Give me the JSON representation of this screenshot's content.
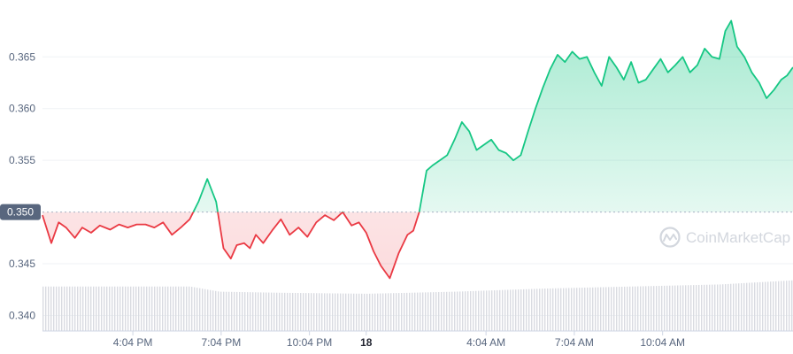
{
  "chart_data": {
    "type": "line",
    "yticks": [
      0.34,
      0.345,
      0.35,
      0.355,
      0.36,
      0.365
    ],
    "ytick_labels": [
      "0.340",
      "0.345",
      "0.350",
      "0.355",
      "0.360",
      "0.365"
    ],
    "ylim": [
      0.3385,
      0.3705
    ],
    "xticks": [
      "4:04 PM",
      "7:04 PM",
      "10:04 PM",
      "18",
      "4:04 AM",
      "7:04 AM",
      "10:04 AM"
    ],
    "xtick_hours": [
      16.07,
      19.07,
      22.07,
      24.0,
      28.07,
      31.07,
      34.07
    ],
    "xlim": [
      13.0,
      38.5
    ],
    "reference": {
      "value": 0.35,
      "label": "0.350"
    },
    "colors": {
      "up": "#16c784",
      "down": "#ea3943",
      "volume": "#d9dbe1",
      "reference": "#a6b0c3"
    },
    "grid": true,
    "watermark": "CoinMarketCap",
    "series": [
      {
        "x": [
          13.0,
          13.3,
          13.55,
          13.8,
          14.1,
          14.35,
          14.65,
          14.95,
          15.3,
          15.6,
          15.9,
          16.2,
          16.5,
          16.8,
          17.1,
          17.4,
          17.7,
          18.0,
          18.3,
          18.6,
          18.9,
          19.15,
          19.4,
          19.6,
          19.85,
          20.05,
          20.25,
          20.5,
          20.8,
          21.1,
          21.4,
          21.7,
          22.0,
          22.3,
          22.6,
          22.9,
          23.2,
          23.5,
          23.75,
          24.0,
          24.25,
          24.5,
          24.8,
          25.1,
          25.4,
          25.6,
          25.8,
          26.05,
          26.25,
          26.5,
          26.75,
          27.0,
          27.25,
          27.5,
          27.75,
          28.0,
          28.25,
          28.5,
          28.75,
          29.0,
          29.25,
          29.5,
          29.75,
          30.0,
          30.25,
          30.5,
          30.75,
          31.0,
          31.25,
          31.5,
          31.75,
          32.0,
          32.25,
          32.5,
          32.75,
          33.0,
          33.25,
          33.5,
          33.75,
          34.0,
          34.25,
          34.5,
          34.75,
          35.0,
          35.25,
          35.5,
          35.75,
          36.0,
          36.2,
          36.4,
          36.6,
          36.85,
          37.1,
          37.35,
          37.6,
          37.85,
          38.1,
          38.3,
          38.5
        ],
        "y": [
          0.3497,
          0.347,
          0.349,
          0.3485,
          0.3475,
          0.3485,
          0.348,
          0.3487,
          0.3483,
          0.3488,
          0.3485,
          0.3488,
          0.3488,
          0.3485,
          0.349,
          0.3478,
          0.3485,
          0.3493,
          0.351,
          0.3532,
          0.351,
          0.3465,
          0.3455,
          0.3468,
          0.347,
          0.3465,
          0.3478,
          0.347,
          0.3482,
          0.3493,
          0.3478,
          0.3485,
          0.3476,
          0.349,
          0.3497,
          0.3492,
          0.35,
          0.3487,
          0.349,
          0.348,
          0.3462,
          0.3448,
          0.3436,
          0.346,
          0.3478,
          0.3482,
          0.35,
          0.354,
          0.3545,
          0.355,
          0.3555,
          0.357,
          0.3587,
          0.3578,
          0.356,
          0.3565,
          0.357,
          0.356,
          0.3557,
          0.355,
          0.3555,
          0.3578,
          0.36,
          0.362,
          0.3638,
          0.3652,
          0.3645,
          0.3655,
          0.3648,
          0.365,
          0.3635,
          0.3622,
          0.365,
          0.364,
          0.3628,
          0.3645,
          0.3625,
          0.3628,
          0.3638,
          0.3648,
          0.3635,
          0.3642,
          0.365,
          0.3635,
          0.3642,
          0.3658,
          0.365,
          0.3648,
          0.3675,
          0.3685,
          0.366,
          0.365,
          0.3635,
          0.3625,
          0.361,
          0.3618,
          0.3628,
          0.3632,
          0.364
        ]
      }
    ],
    "volume": {
      "x": [
        13.0,
        16.0,
        18.0,
        19.0,
        21.0,
        24.0,
        27.0,
        30.0,
        33.0,
        36.0,
        38.5
      ],
      "y": [
        0.3428,
        0.3428,
        0.3428,
        0.3423,
        0.3422,
        0.3421,
        0.3423,
        0.3426,
        0.3428,
        0.343,
        0.3434
      ]
    }
  }
}
